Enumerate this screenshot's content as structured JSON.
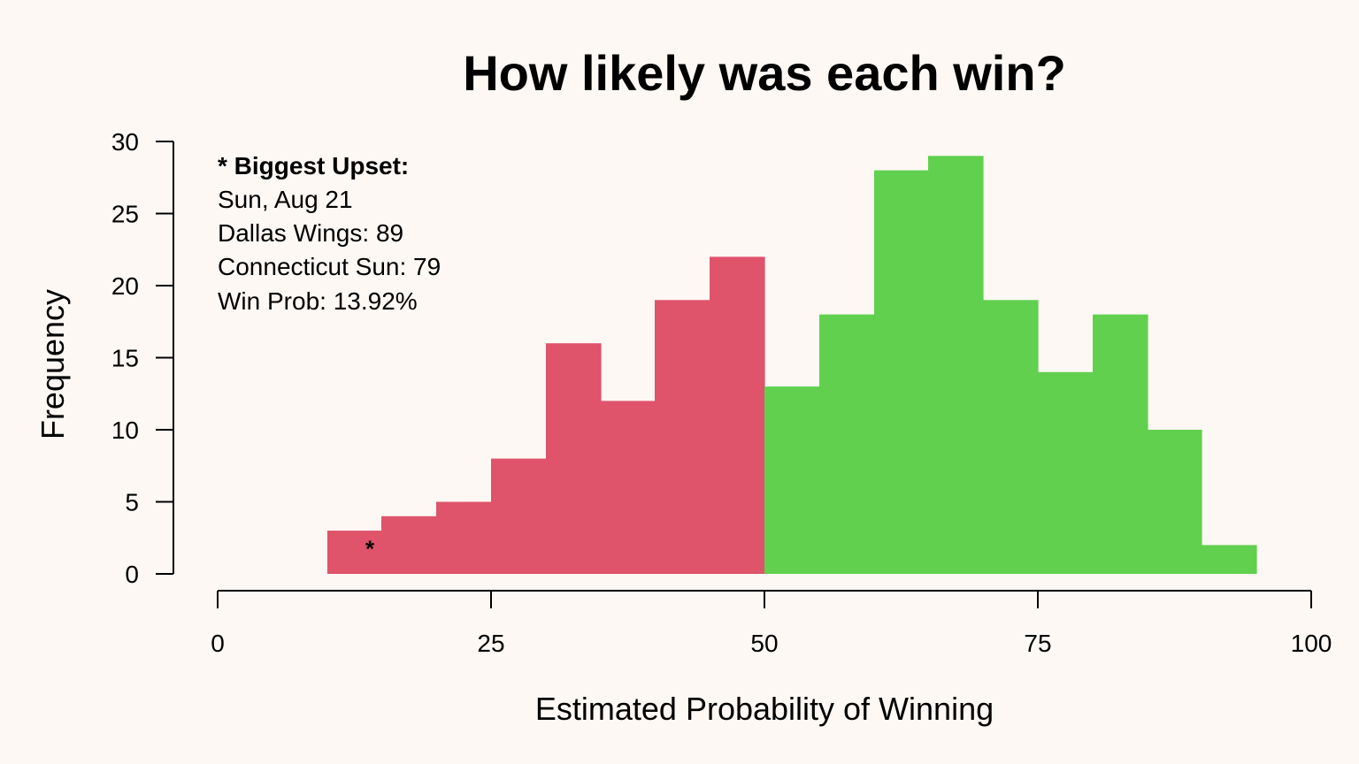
{
  "chart_data": {
    "type": "bar",
    "subtype": "histogram",
    "title": "How likely was each win?",
    "xlabel": "Estimated Probability of Winning",
    "ylabel": "Frequency",
    "xlim": [
      0,
      100
    ],
    "ylim": [
      0,
      30
    ],
    "xticks": [
      0,
      25,
      50,
      75,
      100
    ],
    "yticks": [
      0,
      5,
      10,
      15,
      20,
      25,
      30
    ],
    "grid": false,
    "bins": [
      {
        "x0": 10,
        "x1": 15,
        "count": 3,
        "color": "#df536b"
      },
      {
        "x0": 15,
        "x1": 20,
        "count": 4,
        "color": "#df536b"
      },
      {
        "x0": 20,
        "x1": 25,
        "count": 5,
        "color": "#df536b"
      },
      {
        "x0": 25,
        "x1": 30,
        "count": 8,
        "color": "#df536b"
      },
      {
        "x0": 30,
        "x1": 35,
        "count": 16,
        "color": "#df536b"
      },
      {
        "x0": 35,
        "x1": 40,
        "count": 12,
        "color": "#df536b"
      },
      {
        "x0": 40,
        "x1": 45,
        "count": 19,
        "color": "#df536b"
      },
      {
        "x0": 45,
        "x1": 50,
        "count": 22,
        "color": "#df536b"
      },
      {
        "x0": 50,
        "x1": 55,
        "count": 13,
        "color": "#61d04f"
      },
      {
        "x0": 55,
        "x1": 60,
        "count": 18,
        "color": "#61d04f"
      },
      {
        "x0": 60,
        "x1": 65,
        "count": 28,
        "color": "#61d04f"
      },
      {
        "x0": 65,
        "x1": 70,
        "count": 29,
        "color": "#61d04f"
      },
      {
        "x0": 70,
        "x1": 75,
        "count": 19,
        "color": "#61d04f"
      },
      {
        "x0": 75,
        "x1": 80,
        "count": 14,
        "color": "#61d04f"
      },
      {
        "x0": 80,
        "x1": 85,
        "count": 18,
        "color": "#61d04f"
      },
      {
        "x0": 85,
        "x1": 90,
        "count": 10,
        "color": "#61d04f"
      },
      {
        "x0": 90,
        "x1": 95,
        "count": 2,
        "color": "#61d04f"
      }
    ],
    "colors": {
      "loss_side": "#df536b",
      "win_side": "#61d04f",
      "background": "#fdf8f4"
    },
    "marker": {
      "symbol": "*",
      "x": 13.92,
      "y": 2
    },
    "annotation": {
      "title": "* Biggest Upset:",
      "lines": [
        "Sun, Aug 21",
        "Dallas Wings: 89",
        "Connecticut Sun: 79",
        "Win Prob: 13.92%"
      ]
    }
  }
}
